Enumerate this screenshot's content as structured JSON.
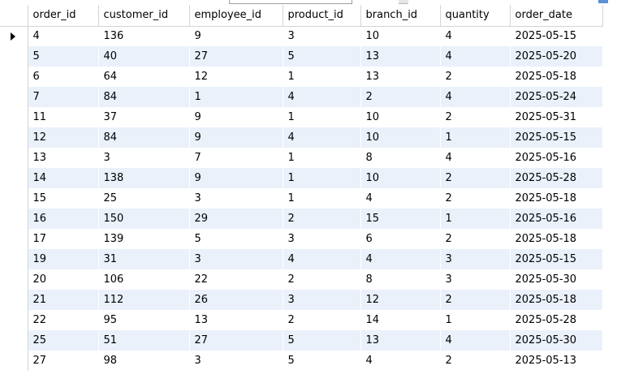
{
  "grid": {
    "columns": [
      "order_id",
      "customer_id",
      "employee_id",
      "product_id",
      "branch_id",
      "quantity",
      "order_date"
    ],
    "rows": [
      [
        "4",
        "136",
        "9",
        "3",
        "10",
        "4",
        "2025-05-15"
      ],
      [
        "5",
        "40",
        "27",
        "5",
        "13",
        "4",
        "2025-05-20"
      ],
      [
        "6",
        "64",
        "12",
        "1",
        "13",
        "2",
        "2025-05-18"
      ],
      [
        "7",
        "84",
        "1",
        "4",
        "2",
        "4",
        "2025-05-24"
      ],
      [
        "11",
        "37",
        "9",
        "1",
        "10",
        "2",
        "2025-05-31"
      ],
      [
        "12",
        "84",
        "9",
        "4",
        "10",
        "1",
        "2025-05-15"
      ],
      [
        "13",
        "3",
        "7",
        "1",
        "8",
        "4",
        "2025-05-16"
      ],
      [
        "14",
        "138",
        "9",
        "1",
        "10",
        "2",
        "2025-05-28"
      ],
      [
        "15",
        "25",
        "3",
        "1",
        "4",
        "2",
        "2025-05-18"
      ],
      [
        "16",
        "150",
        "29",
        "2",
        "15",
        "1",
        "2025-05-16"
      ],
      [
        "17",
        "139",
        "5",
        "3",
        "6",
        "2",
        "2025-05-18"
      ],
      [
        "19",
        "31",
        "3",
        "4",
        "4",
        "3",
        "2025-05-15"
      ],
      [
        "20",
        "106",
        "22",
        "2",
        "8",
        "3",
        "2025-05-30"
      ],
      [
        "21",
        "112",
        "26",
        "3",
        "12",
        "2",
        "2025-05-18"
      ],
      [
        "22",
        "95",
        "13",
        "2",
        "14",
        "1",
        "2025-05-28"
      ],
      [
        "25",
        "51",
        "27",
        "5",
        "13",
        "4",
        "2025-05-30"
      ],
      [
        "27",
        "98",
        "3",
        "5",
        "4",
        "2",
        "2025-05-13"
      ]
    ],
    "current_row_index": 0,
    "row_pointer_icon": "row-pointer-icon",
    "colors": {
      "stripe": "#eaf1fb",
      "grid_line": "#d4d4d4"
    }
  }
}
